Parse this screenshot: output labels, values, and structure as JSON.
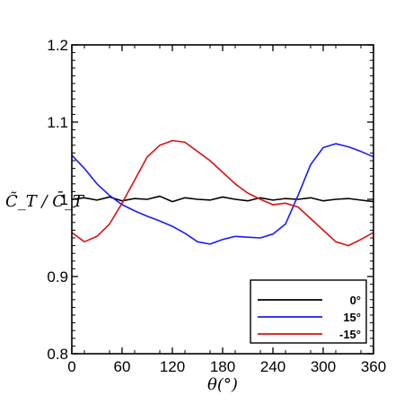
{
  "chart_data": {
    "type": "line",
    "title": "",
    "xlabel": "θ(°)",
    "ylabel": "C̃_T / C̄_T",
    "xlim": [
      0,
      360
    ],
    "ylim": [
      0.8,
      1.2
    ],
    "xticks": [
      0,
      60,
      120,
      180,
      240,
      300,
      360
    ],
    "yticks": [
      0.8,
      0.9,
      1.0,
      1.1,
      1.2
    ],
    "ytick_labels": [
      "0.8",
      "0.9",
      "1",
      "1.1",
      "1.2"
    ],
    "grid": false,
    "legend_position": "bottom-right",
    "x": [
      0,
      15,
      30,
      45,
      60,
      75,
      90,
      105,
      120,
      135,
      150,
      165,
      180,
      195,
      210,
      225,
      240,
      255,
      270,
      285,
      300,
      315,
      330,
      345,
      360
    ],
    "series": [
      {
        "name": "0°",
        "color": "#000000",
        "values": [
          1.0,
          1.002,
          0.999,
          1.003,
          0.998,
          1.001,
          1.0,
          1.004,
          0.997,
          1.002,
          1.0,
          0.999,
          1.003,
          1.0,
          0.998,
          1.002,
          0.999,
          1.001,
          1.0,
          1.002,
          0.998,
          1.0,
          1.001,
          0.999,
          0.997
        ]
      },
      {
        "name": "15°",
        "color": "#1a1aff",
        "values": [
          1.057,
          1.04,
          1.02,
          1.005,
          0.993,
          0.985,
          0.978,
          0.972,
          0.965,
          0.956,
          0.945,
          0.942,
          0.948,
          0.952,
          0.951,
          0.95,
          0.955,
          0.968,
          1.005,
          1.045,
          1.067,
          1.072,
          1.068,
          1.062,
          1.055
        ]
      },
      {
        "name": "-15°",
        "color": "#dd1111",
        "values": [
          0.957,
          0.945,
          0.952,
          0.968,
          0.995,
          1.025,
          1.055,
          1.07,
          1.076,
          1.074,
          1.062,
          1.05,
          1.035,
          1.02,
          1.008,
          1.0,
          0.993,
          0.995,
          0.99,
          0.975,
          0.96,
          0.945,
          0.94,
          0.948,
          0.957
        ]
      }
    ]
  }
}
